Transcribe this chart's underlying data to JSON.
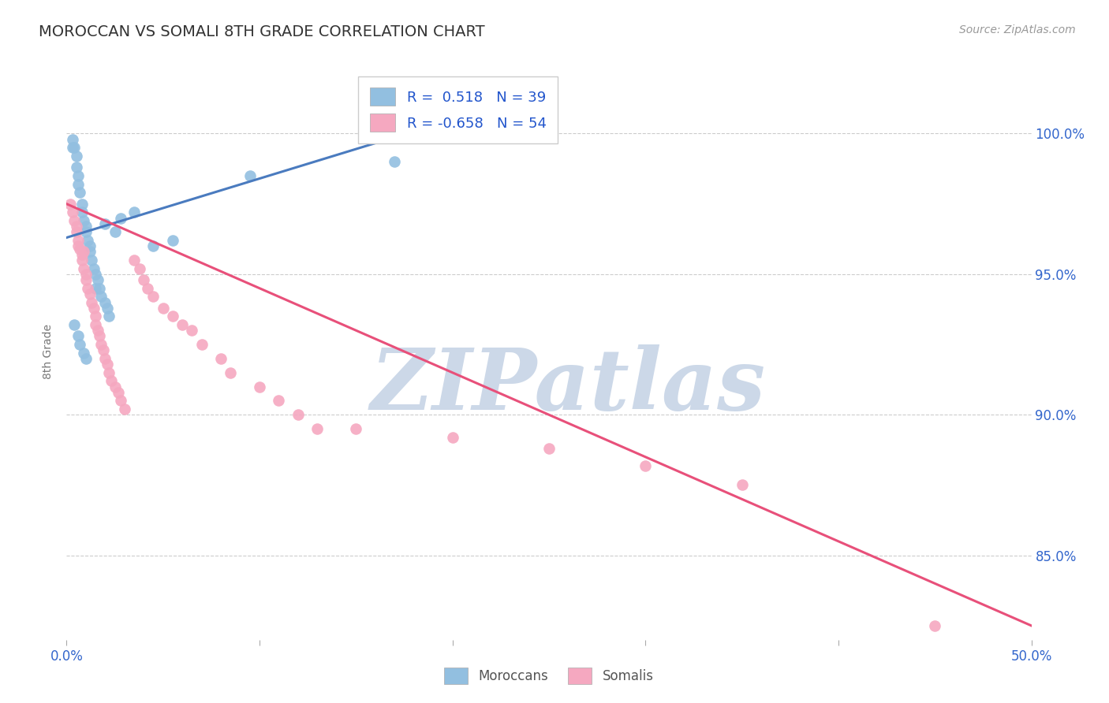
{
  "title": "MOROCCAN VS SOMALI 8TH GRADE CORRELATION CHART",
  "source": "Source: ZipAtlas.com",
  "ylabel": "8th Grade",
  "xlim": [
    0.0,
    50.0
  ],
  "ylim": [
    82.0,
    102.5
  ],
  "xticks": [
    0.0,
    10.0,
    20.0,
    30.0,
    40.0,
    50.0
  ],
  "xtick_labels": [
    "0.0%",
    "",
    "",
    "",
    "",
    "50.0%"
  ],
  "ytick_labels": [
    "85.0%",
    "90.0%",
    "95.0%",
    "100.0%"
  ],
  "ytick_values": [
    85.0,
    90.0,
    95.0,
    100.0
  ],
  "moroccan_R": 0.518,
  "moroccan_N": 39,
  "somali_R": -0.658,
  "somali_N": 54,
  "moroccan_color": "#92bfe0",
  "somali_color": "#f5a8c0",
  "moroccan_line_color": "#4a7bbf",
  "somali_line_color": "#e8507a",
  "background_color": "#ffffff",
  "grid_color": "#cccccc",
  "watermark_color": "#ccd8e8",
  "moroccan_line_x": [
    0.0,
    20.0
  ],
  "moroccan_line_y": [
    96.3,
    100.5
  ],
  "somali_line_x": [
    0.0,
    50.0
  ],
  "somali_line_y": [
    97.5,
    82.5
  ],
  "moroccan_x": [
    0.3,
    0.4,
    0.5,
    0.5,
    0.6,
    0.6,
    0.7,
    0.8,
    0.8,
    0.9,
    1.0,
    1.0,
    1.1,
    1.2,
    1.2,
    1.3,
    1.4,
    1.5,
    1.6,
    1.7,
    1.8,
    2.0,
    2.1,
    2.2,
    2.5,
    2.8,
    3.5,
    4.5,
    5.5,
    9.5,
    17.0,
    0.4,
    0.6,
    0.7,
    0.9,
    1.0,
    1.5,
    2.0,
    0.3
  ],
  "moroccan_y": [
    99.8,
    99.5,
    99.2,
    98.8,
    98.5,
    98.2,
    97.9,
    97.5,
    97.2,
    96.9,
    96.7,
    96.5,
    96.2,
    96.0,
    95.8,
    95.5,
    95.2,
    95.0,
    94.8,
    94.5,
    94.2,
    94.0,
    93.8,
    93.5,
    96.5,
    97.0,
    97.2,
    96.0,
    96.2,
    98.5,
    99.0,
    93.2,
    92.8,
    92.5,
    92.2,
    92.0,
    94.5,
    96.8,
    99.5
  ],
  "somali_x": [
    0.2,
    0.3,
    0.4,
    0.5,
    0.5,
    0.6,
    0.7,
    0.8,
    0.8,
    0.9,
    1.0,
    1.0,
    1.1,
    1.2,
    1.3,
    1.4,
    1.5,
    1.5,
    1.6,
    1.7,
    1.8,
    1.9,
    2.0,
    2.1,
    2.2,
    2.3,
    2.5,
    2.7,
    2.8,
    3.0,
    3.5,
    3.8,
    4.0,
    4.2,
    4.5,
    5.0,
    5.5,
    6.0,
    6.5,
    7.0,
    8.0,
    8.5,
    10.0,
    11.0,
    12.0,
    15.0,
    20.0,
    25.0,
    30.0,
    35.0,
    45.0,
    0.6,
    0.9,
    13.0
  ],
  "somali_y": [
    97.5,
    97.2,
    96.9,
    96.7,
    96.5,
    96.2,
    95.9,
    95.7,
    95.5,
    95.2,
    95.0,
    94.8,
    94.5,
    94.3,
    94.0,
    93.8,
    93.5,
    93.2,
    93.0,
    92.8,
    92.5,
    92.3,
    92.0,
    91.8,
    91.5,
    91.2,
    91.0,
    90.8,
    90.5,
    90.2,
    95.5,
    95.2,
    94.8,
    94.5,
    94.2,
    93.8,
    93.5,
    93.2,
    93.0,
    92.5,
    92.0,
    91.5,
    91.0,
    90.5,
    90.0,
    89.5,
    89.2,
    88.8,
    88.2,
    87.5,
    82.5,
    96.0,
    95.8,
    89.5
  ]
}
